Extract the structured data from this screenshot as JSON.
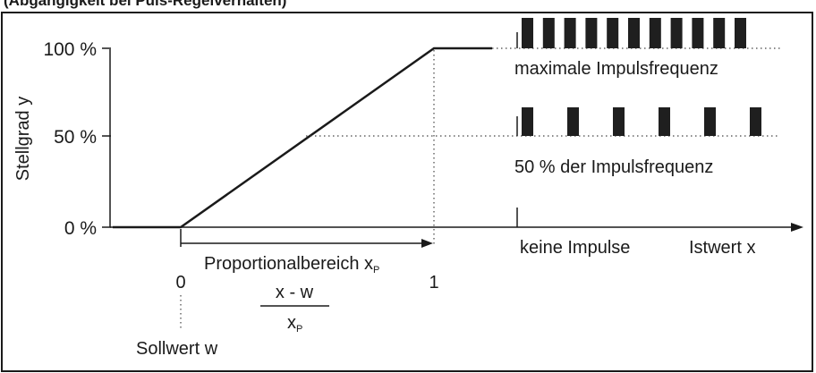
{
  "header_fragment": "(Abgängigkeit bei Puls-Regelverhalten)",
  "y_axis": {
    "label": "Stellgrad y",
    "ticks": [
      "100 %",
      "50 %",
      "0 %"
    ]
  },
  "x_axis": {
    "label": "Istwert x",
    "tick_0": "0",
    "tick_1": "1"
  },
  "proportional_band": {
    "label_main": "Proportionalbereich x",
    "label_sub": "P"
  },
  "formula": {
    "numerator": "x - w",
    "denominator_main": "x",
    "denominator_sub": "P"
  },
  "setpoint_label": "Sollwert w",
  "pulse_annotations": {
    "max": "maximale Impulsfrequenz",
    "half": "50 % der Impulsfrequenz",
    "none": "keine Impulse"
  },
  "colors": {
    "ink": "#1a1a1a",
    "pulse": "#1f1f1f",
    "dotted": "#444444"
  }
}
